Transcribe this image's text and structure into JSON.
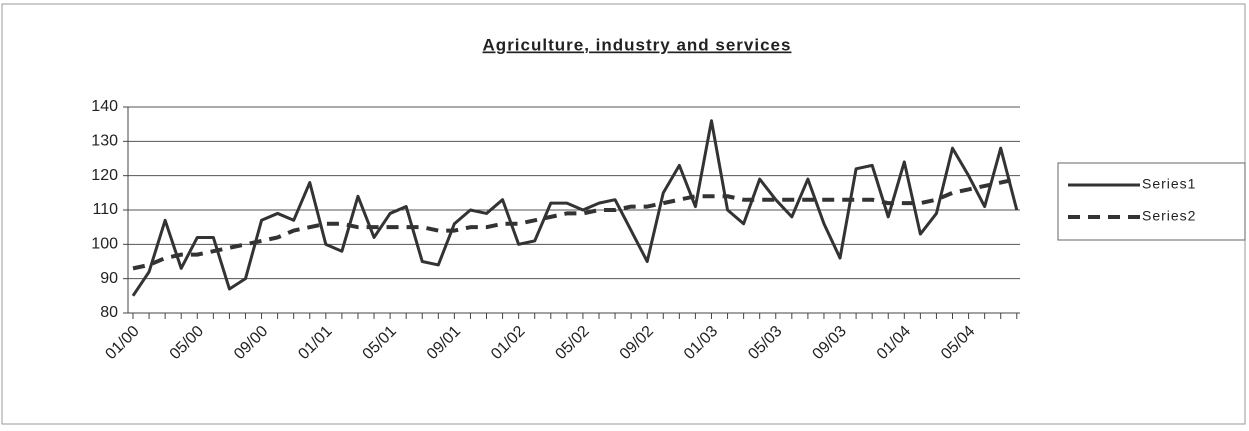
{
  "chart_data": {
    "type": "line",
    "title": "Agriculture, industry and services",
    "categories": [
      "01/00",
      null,
      null,
      null,
      "05/00",
      null,
      null,
      null,
      "09/00",
      null,
      null,
      null,
      "01/01",
      null,
      null,
      null,
      "05/01",
      null,
      null,
      null,
      "09/01",
      null,
      null,
      null,
      "01/02",
      null,
      null,
      null,
      "05/02",
      null,
      null,
      null,
      "09/02",
      null,
      null,
      null,
      "01/03",
      null,
      null,
      null,
      "05/03",
      null,
      null,
      null,
      "09/03",
      null,
      null,
      null,
      "01/04",
      null,
      null,
      null,
      "05/04",
      null,
      null,
      null
    ],
    "series": [
      {
        "name": "Series1",
        "color": "#333333",
        "dashed": false,
        "values": [
          85,
          92,
          107,
          93,
          102,
          102,
          87,
          90,
          107,
          109,
          107,
          118,
          100,
          98,
          114,
          102,
          109,
          111,
          95,
          94,
          106,
          110,
          109,
          113,
          100,
          101,
          112,
          112,
          110,
          112,
          113,
          104,
          95,
          115,
          123,
          111,
          136,
          110,
          106,
          119,
          113,
          108,
          119,
          106,
          96,
          122,
          123,
          108,
          124,
          103,
          109,
          128,
          120,
          111,
          128,
          110
        ]
      },
      {
        "name": "Series2",
        "color": "#333333",
        "dashed": true,
        "values": [
          93,
          94,
          96,
          97,
          97,
          98,
          99,
          100,
          101,
          102,
          104,
          105,
          106,
          106,
          105,
          105,
          105,
          105,
          105,
          104,
          104,
          105,
          105,
          106,
          106,
          107,
          108,
          109,
          109,
          110,
          110,
          111,
          111,
          112,
          113,
          114,
          114,
          114,
          113,
          113,
          113,
          113,
          113,
          113,
          113,
          113,
          113,
          112,
          112,
          112,
          113,
          115,
          116,
          117,
          118,
          119
        ]
      }
    ],
    "ylim": [
      80,
      140
    ],
    "yticks": [
      80,
      90,
      100,
      110,
      120,
      130,
      140
    ],
    "grid": true,
    "legend": "right"
  }
}
